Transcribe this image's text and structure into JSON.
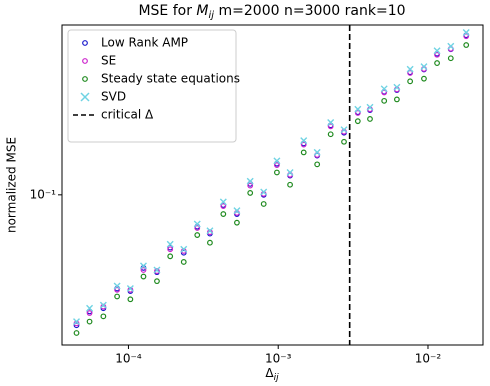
{
  "chart_data": {
    "type": "scatter",
    "title_parts": [
      "MSE for ",
      "M",
      "ij",
      " m=2000 n=3000 rank=10"
    ],
    "xlabel_parts": [
      "Δ",
      "ij"
    ],
    "ylabel": "normalized MSE",
    "log_x": true,
    "log_y": true,
    "xlim": [
      3.6e-05,
      0.0233
    ],
    "ylim": [
      0.0212,
      0.578
    ],
    "xticks": [
      {
        "value": 0.0001,
        "label": "10⁻⁴"
      },
      {
        "value": 0.001,
        "label": "10⁻³"
      },
      {
        "value": 0.01,
        "label": "10⁻²"
      }
    ],
    "yticks": [
      {
        "value": 0.1,
        "label": "10⁻¹"
      }
    ],
    "legend": "upper left",
    "x": [
      4.5e-05,
      5.5e-05,
      6.8e-05,
      8.4e-05,
      0.000103,
      0.000126,
      0.000155,
      0.00019,
      0.000234,
      0.000288,
      0.00035,
      0.00043,
      0.00053,
      0.00065,
      0.0008,
      0.00098,
      0.0012,
      0.00148,
      0.00182,
      0.00224,
      0.00275,
      0.0034,
      0.0041,
      0.0051,
      0.0062,
      0.0076,
      0.0094,
      0.0115,
      0.0142,
      0.018
    ],
    "series": [
      {
        "name": "Low Rank AMP",
        "color": "#1a1acc",
        "marker": "circle",
        "values": [
          0.026,
          0.03,
          0.031,
          0.038,
          0.037,
          0.047,
          0.045,
          0.058,
          0.055,
          0.072,
          0.067,
          0.09,
          0.082,
          0.112,
          0.1,
          0.138,
          0.122,
          0.17,
          0.15,
          0.205,
          0.19,
          0.235,
          0.24,
          0.29,
          0.295,
          0.355,
          0.365,
          0.43,
          0.45,
          0.52
        ]
      },
      {
        "name": "SE",
        "color": "#cc22cc",
        "marker": "circle",
        "values": [
          0.0265,
          0.0295,
          0.0315,
          0.0375,
          0.0375,
          0.046,
          0.0455,
          0.057,
          0.056,
          0.071,
          0.068,
          0.089,
          0.083,
          0.11,
          0.101,
          0.136,
          0.123,
          0.168,
          0.151,
          0.203,
          0.192,
          0.233,
          0.242,
          0.288,
          0.297,
          0.352,
          0.367,
          0.425,
          0.452,
          0.515
        ]
      },
      {
        "name": "Steady state equations",
        "color": "#1f8a1f",
        "marker": "circle",
        "values": [
          0.024,
          0.027,
          0.0285,
          0.035,
          0.034,
          0.043,
          0.041,
          0.053,
          0.05,
          0.066,
          0.061,
          0.082,
          0.075,
          0.102,
          0.091,
          0.126,
          0.111,
          0.155,
          0.137,
          0.187,
          0.173,
          0.214,
          0.219,
          0.264,
          0.268,
          0.323,
          0.332,
          0.39,
          0.41,
          0.47
        ]
      },
      {
        "name": "SVD",
        "color": "#6fd3e3",
        "marker": "x",
        "values": [
          0.027,
          0.031,
          0.032,
          0.039,
          0.038,
          0.048,
          0.046,
          0.06,
          0.057,
          0.074,
          0.069,
          0.093,
          0.085,
          0.115,
          0.103,
          0.142,
          0.126,
          0.175,
          0.155,
          0.211,
          0.196,
          0.242,
          0.247,
          0.299,
          0.304,
          0.366,
          0.376,
          0.443,
          0.464,
          0.535
        ]
      }
    ],
    "critical_x": 0.003,
    "critical_label": "critical Δ",
    "critical_color": "#000000"
  }
}
